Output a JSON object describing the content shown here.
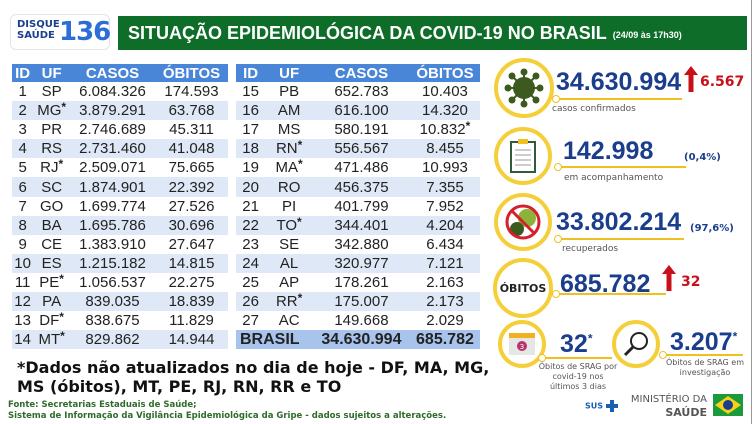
{
  "header": {
    "logo_line1": "DISQUE",
    "logo_line2": "SAÚDE",
    "logo_number": "136",
    "title": "SITUAÇÃO EPIDEMIOLÓGICA DA COVID-19 NO BRASIL",
    "subtitle": "(24/09 às 17h30)"
  },
  "table": {
    "columns": [
      "ID",
      "UF",
      "CASOS",
      "ÓBITOS"
    ],
    "left": [
      [
        "1",
        "SP",
        "6.084.326",
        "174.593",
        ""
      ],
      [
        "2",
        "MG",
        "3.879.291",
        "63.768",
        "uf"
      ],
      [
        "3",
        "PR",
        "2.746.689",
        "45.311",
        ""
      ],
      [
        "4",
        "RS",
        "2.731.460",
        "41.048",
        ""
      ],
      [
        "5",
        "RJ",
        "2.509.071",
        "75.665",
        "uf"
      ],
      [
        "6",
        "SC",
        "1.874.901",
        "22.392",
        ""
      ],
      [
        "7",
        "GO",
        "1.699.774",
        "27.526",
        ""
      ],
      [
        "8",
        "BA",
        "1.695.786",
        "30.696",
        ""
      ],
      [
        "9",
        "CE",
        "1.383.910",
        "27.647",
        ""
      ],
      [
        "10",
        "ES",
        "1.215.182",
        "14.815",
        ""
      ],
      [
        "11",
        "PE",
        "1.056.537",
        "22.275",
        "uf"
      ],
      [
        "12",
        "PA",
        "839.035",
        "18.839",
        ""
      ],
      [
        "13",
        "DF",
        "838.675",
        "11.829",
        "uf"
      ],
      [
        "14",
        "MT",
        "829.862",
        "14.944",
        "uf"
      ]
    ],
    "right": [
      [
        "15",
        "PB",
        "652.783",
        "10.403",
        ""
      ],
      [
        "16",
        "AM",
        "616.100",
        "14.320",
        ""
      ],
      [
        "17",
        "MS",
        "580.191",
        "10.832",
        "obitos"
      ],
      [
        "18",
        "RN",
        "556.567",
        "8.455",
        "uf"
      ],
      [
        "19",
        "MA",
        "471.486",
        "10.993",
        "uf"
      ],
      [
        "20",
        "RO",
        "456.375",
        "7.355",
        ""
      ],
      [
        "21",
        "PI",
        "401.799",
        "7.952",
        ""
      ],
      [
        "22",
        "TO",
        "344.401",
        "4.204",
        "uf"
      ],
      [
        "23",
        "SE",
        "342.880",
        "6.434",
        ""
      ],
      [
        "24",
        "AL",
        "320.977",
        "7.121",
        ""
      ],
      [
        "25",
        "AP",
        "178.261",
        "2.163",
        ""
      ],
      [
        "26",
        "RR",
        "175.007",
        "2.173",
        "uf"
      ],
      [
        "27",
        "AC",
        "149.668",
        "2.029",
        ""
      ]
    ],
    "total": {
      "label": "BRASIL",
      "casos": "34.630.994",
      "obitos": "685.782"
    },
    "star": "*"
  },
  "note": "*Dados não atualizados no dia de hoje - DF, MA, MG, MS (óbitos), MT, PE, RJ, RN, RR e TO",
  "source": {
    "line1": "Fonte: Secretarias Estaduais de Saúde;",
    "line2": "Sistema de Informação da Vigilância Epidemiológica da Gripe - dados sujeitos a alterações."
  },
  "stats": {
    "confirmed": {
      "value": "34.630.994",
      "increase": "6.567",
      "label": "casos confirmados"
    },
    "monitoring": {
      "value": "142.998",
      "pct": "(0,4%)",
      "label": "em acompanhamento"
    },
    "recovered": {
      "value": "33.802.214",
      "pct": "(97,6%)",
      "label": "recuperados"
    },
    "deaths": {
      "badge": "ÓBITOS",
      "value": "685.782",
      "increase": "32"
    },
    "srag": {
      "value": "32",
      "star": "*",
      "label": "Óbitos de SRAG por covid-19 nos últimos 3 dias",
      "calendar_number": "3"
    },
    "srag_investigation": {
      "value": "3.207",
      "star": "*",
      "label": "Óbitos de SRAG em investigação"
    }
  },
  "footer": {
    "sus": "SUS",
    "ministry_line1": "MINISTÉRIO DA",
    "ministry_line2": "SAÚDE"
  },
  "colors": {
    "green": "#0f6d2a",
    "blue_header": "#4a86d8",
    "navy": "#1a3d8c",
    "red": "#c8101b",
    "yellow": "#f5cf3a"
  }
}
